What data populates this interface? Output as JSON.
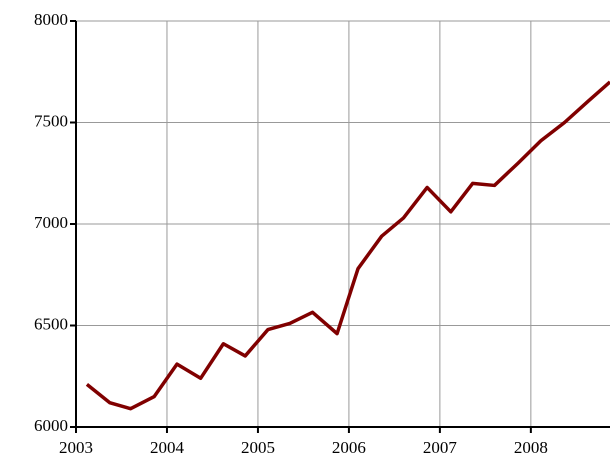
{
  "chart_data": {
    "type": "line",
    "x": [
      2003.12,
      2003.37,
      2003.6,
      2003.86,
      2004.11,
      2004.37,
      2004.62,
      2004.86,
      2005.11,
      2005.35,
      2005.6,
      2005.87,
      2006.1,
      2006.36,
      2006.6,
      2006.86,
      2007.12,
      2007.36,
      2007.6,
      2007.86,
      2008.11,
      2008.37,
      2008.63,
      2008.87
    ],
    "values": [
      6210,
      6120,
      6090,
      6150,
      6310,
      6240,
      6410,
      6350,
      6480,
      6510,
      6565,
      6460,
      6780,
      6940,
      7030,
      7180,
      7060,
      7200,
      7190,
      7300,
      7410,
      7500,
      7605,
      7700
    ],
    "color": "#800000",
    "xlim": [
      2003,
      2008.87
    ],
    "xticks": [
      2003,
      2004,
      2005,
      2006,
      2007,
      2008
    ],
    "ylim": [
      6000,
      8000
    ],
    "yticks": [
      6000,
      6500,
      7000,
      7500,
      8000
    ],
    "grid": true
  }
}
